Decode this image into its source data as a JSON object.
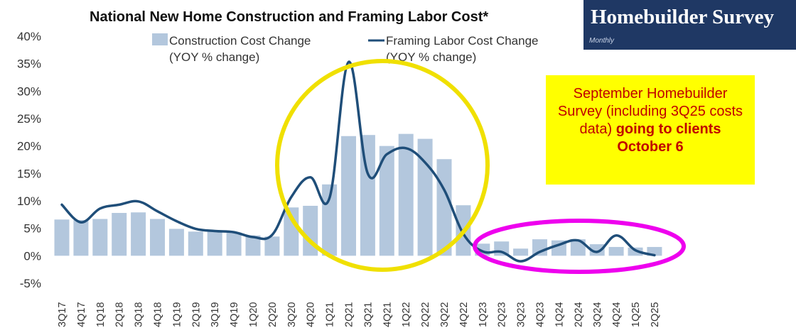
{
  "brand": {
    "name": "Homebuilder Survey",
    "sub": "Monthly"
  },
  "callout": {
    "text": "September Homebuilder Survey (including 3Q25 costs data)",
    "bold": "going to clients October 6"
  },
  "colors": {
    "bars": "#b3c7dd",
    "line": "#1f4e79",
    "yellow_circle": "#f0e000",
    "magenta_ellipse": "#ee00ee",
    "callout_bg": "#ffff00",
    "callout_text": "#c00000"
  },
  "chart_data": {
    "type": "bar+line",
    "title": "National New Home Construction and Framing Labor Cost*",
    "ylim": [
      -5,
      40
    ],
    "yticks": [
      "40%",
      "35%",
      "30%",
      "25%",
      "20%",
      "15%",
      "10%",
      "5%",
      "0%",
      "-5%"
    ],
    "legend": {
      "bars": {
        "line1": "Construction Cost Change",
        "line2": "(YOY % change)"
      },
      "line": {
        "line1": "Framing Labor Cost Change",
        "line2": "(YOY % change)"
      }
    },
    "categories": [
      "3Q17",
      "4Q17",
      "1Q18",
      "2Q18",
      "3Q18",
      "4Q18",
      "1Q19",
      "2Q19",
      "3Q19",
      "4Q19",
      "1Q20",
      "2Q20",
      "3Q20",
      "4Q20",
      "1Q21",
      "2Q21",
      "3Q21",
      "4Q21",
      "1Q22",
      "2Q22",
      "3Q22",
      "4Q22",
      "1Q23",
      "2Q23",
      "3Q23",
      "4Q23",
      "1Q24",
      "2Q24",
      "3Q24",
      "4Q24",
      "1Q25",
      "2Q25"
    ],
    "series": [
      {
        "name": "Construction Cost Change",
        "kind": "bar",
        "values": [
          6.6,
          6.5,
          6.7,
          7.8,
          7.9,
          6.7,
          4.9,
          4.4,
          4.6,
          4.2,
          3.7,
          3.5,
          8.8,
          9.1,
          13.0,
          21.8,
          22.0,
          20.0,
          22.2,
          21.3,
          17.6,
          9.2,
          2.2,
          2.6,
          1.3,
          3.0,
          2.8,
          3.0,
          2.1,
          1.6,
          1.5,
          1.6
        ]
      },
      {
        "name": "Framing Labor Cost Change",
        "kind": "line",
        "values": [
          9.3,
          6.1,
          8.6,
          9.3,
          9.9,
          8.1,
          6.3,
          4.9,
          4.5,
          4.3,
          3.4,
          3.8,
          10.7,
          14.3,
          10.5,
          35.3,
          15.0,
          18.5,
          19.6,
          17.0,
          12.0,
          4.0,
          0.8,
          0.7,
          -1.0,
          0.7,
          2.0,
          2.8,
          0.7,
          3.7,
          1.0,
          0.1
        ]
      }
    ]
  }
}
